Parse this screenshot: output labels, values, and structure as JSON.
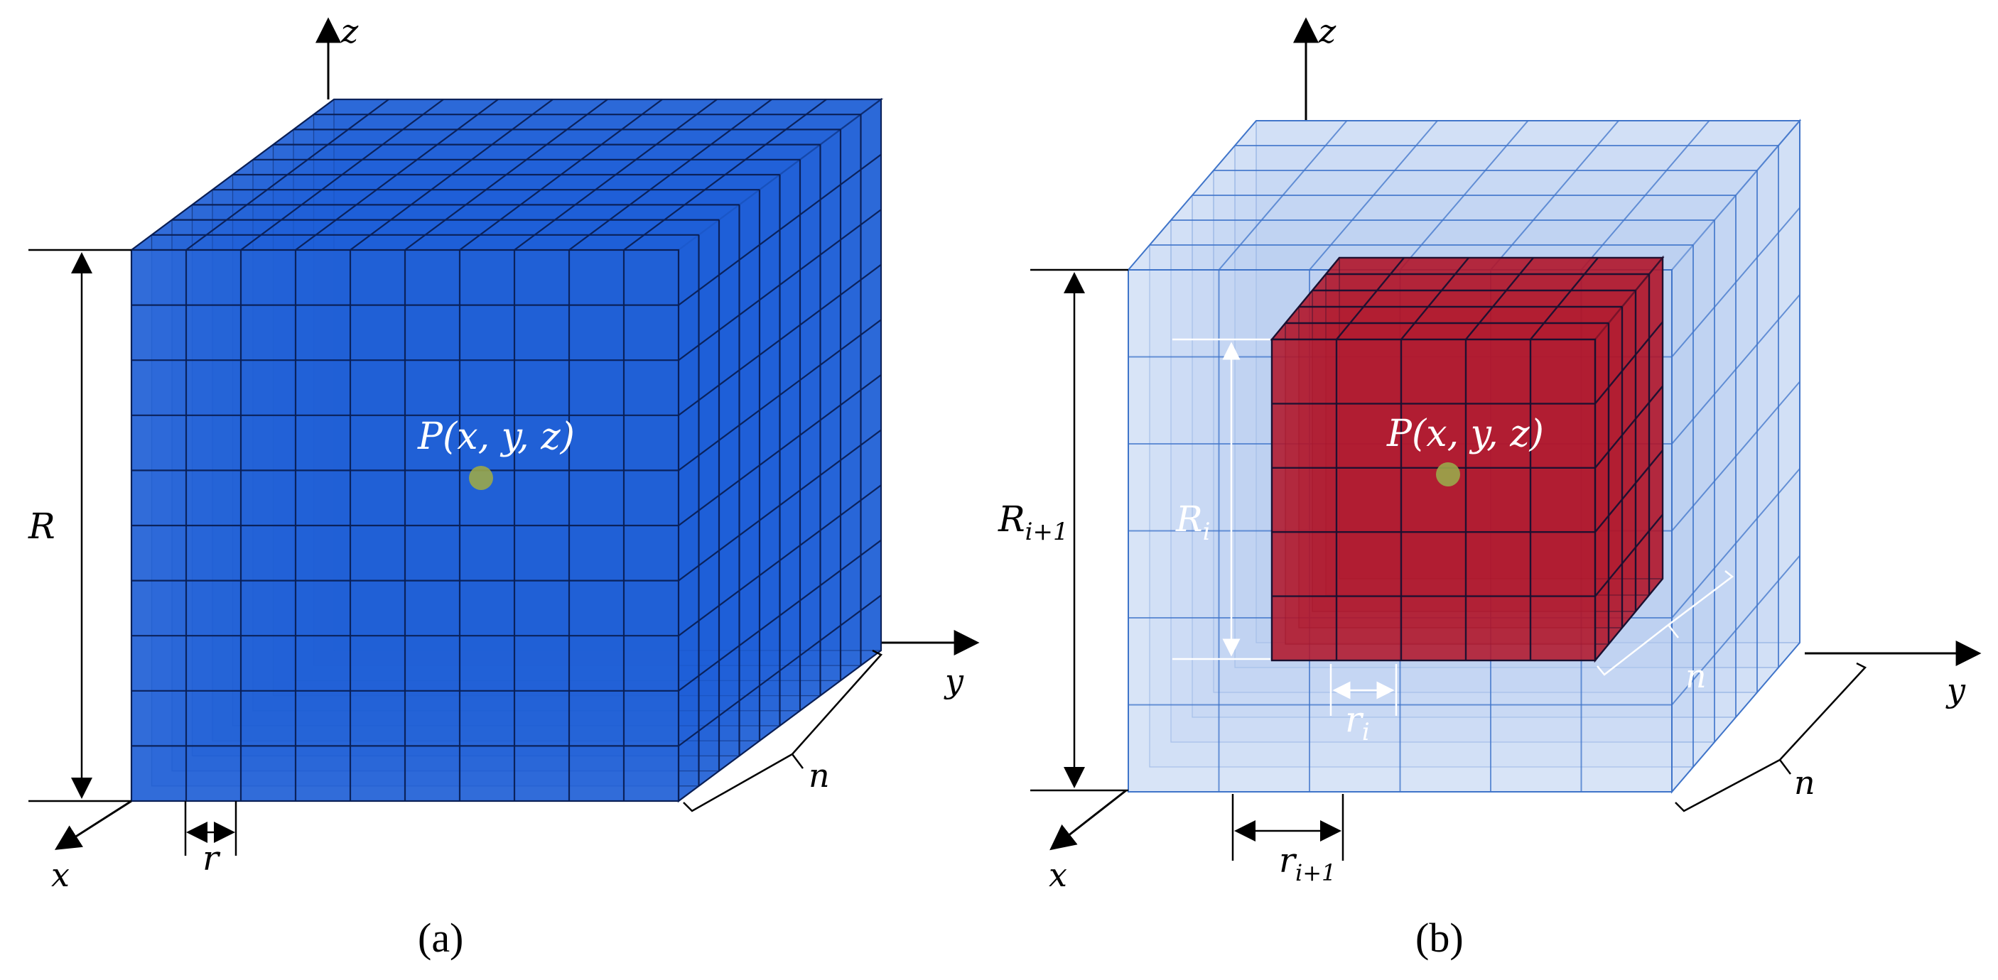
{
  "panel_a": {
    "caption": "(a)",
    "axes": {
      "x": "x",
      "y": "y",
      "z": "z"
    },
    "point_label": "P(x, y, z)",
    "big_size_label": "R",
    "cell_size_label": "r",
    "count_label": "n",
    "grid_divisions": 10,
    "cube_color": "#1f5fd6",
    "point_color": "#9aa84a"
  },
  "panel_b": {
    "caption": "(b)",
    "axes": {
      "x": "x",
      "y": "y",
      "z": "z"
    },
    "point_label": "P(x, y, z)",
    "outer_size_label": "R",
    "outer_size_sub": "i+1",
    "inner_size_label": "R",
    "inner_size_sub": "i",
    "outer_cell_label": "r",
    "outer_cell_sub": "i+1",
    "inner_cell_label": "r",
    "inner_cell_sub": "i",
    "inner_count_label": "n",
    "outer_count_label": "n",
    "outer_divisions": 6,
    "inner_divisions": 5,
    "outer_color": "#a9c4ee",
    "inner_color": "#b0172b",
    "point_color": "#9aa84a"
  }
}
